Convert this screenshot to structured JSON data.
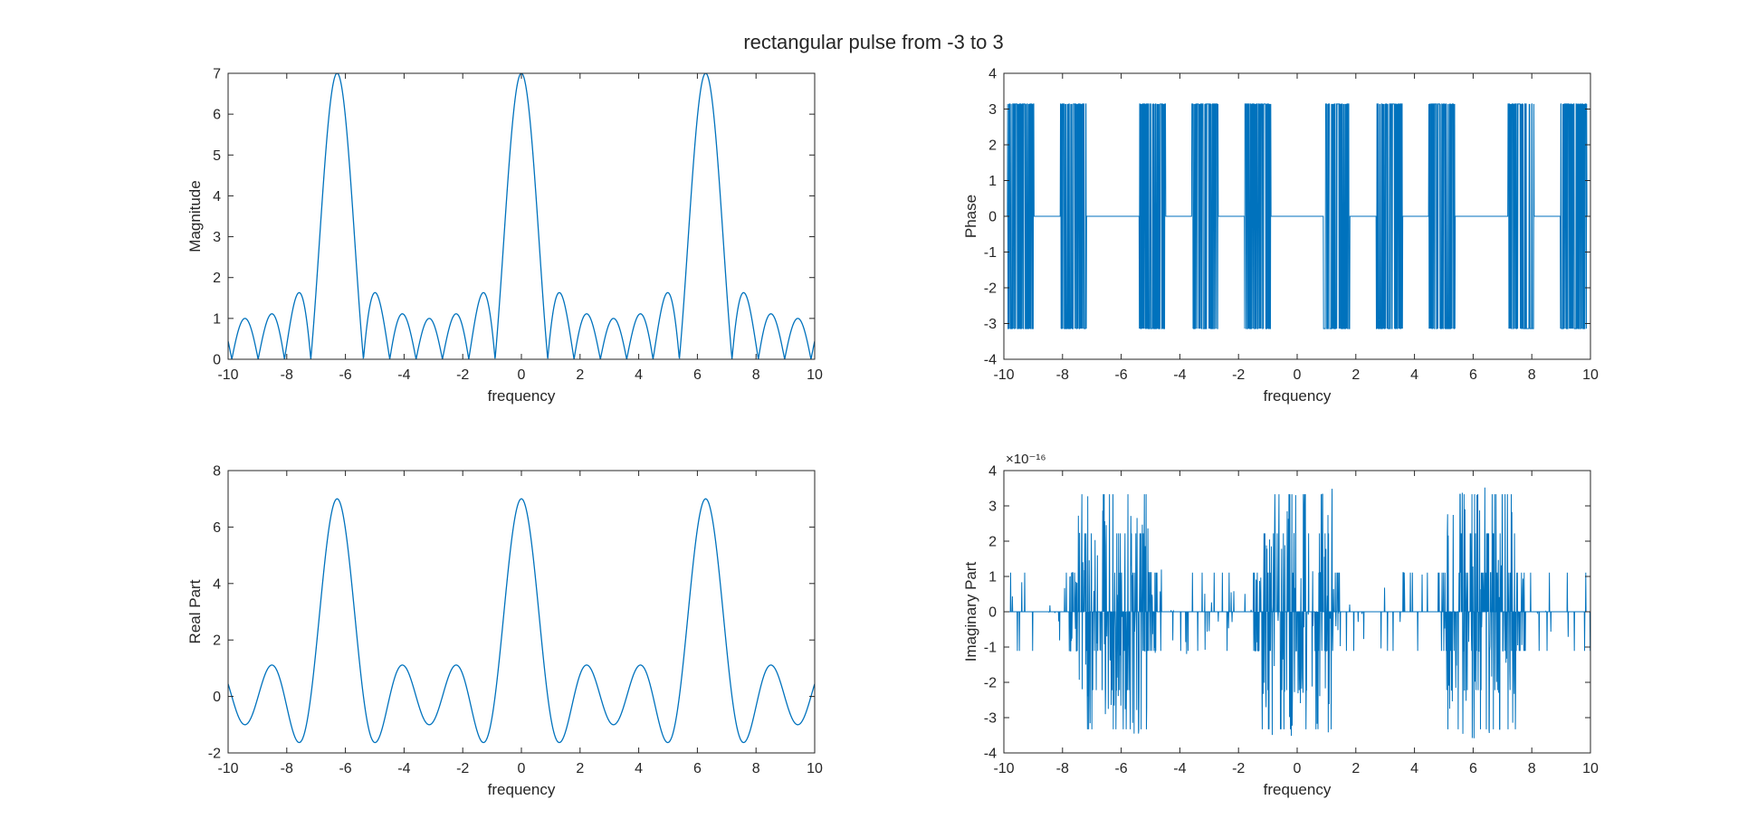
{
  "figure": {
    "title": "rectangular pulse from -3 to 3",
    "line_color": "#0072BD",
    "axis_color": "#262626"
  },
  "chart_data": [
    {
      "type": "line",
      "id": "magnitude",
      "title": "",
      "xlabel": "frequency",
      "ylabel": "Magnitude",
      "xlim": [
        -10,
        10
      ],
      "ylim": [
        0,
        7
      ],
      "xticks": [
        -10,
        -8,
        -6,
        -4,
        -2,
        0,
        2,
        4,
        6,
        8,
        10
      ],
      "yticks": [
        0,
        1,
        2,
        3,
        4,
        5,
        6,
        7
      ],
      "exponent_label": "",
      "grid": false,
      "series": [
        {
          "function": "abs of 7-sample Dirichlet kernel: |sin(3.5w)/sin(0.5w)|, sampled every 0.01 from -10 to 10",
          "x": [
            -10,
            -9.7,
            -9.35,
            -8.98,
            -8.6,
            -8.2,
            -7.7,
            -7.18,
            -6.8,
            -6.283,
            -5.75,
            -5.39,
            -5.0,
            -4.49,
            -4.13,
            -3.59,
            -3.14,
            -2.69,
            -2.2,
            -1.8,
            -1.35,
            -0.898,
            -0.45,
            0,
            0.45,
            0.898,
            1.35,
            1.8,
            2.2,
            2.69,
            3.14,
            3.59,
            4.13,
            4.49,
            5.0,
            5.39,
            5.75,
            6.283,
            6.8,
            7.18,
            7.7,
            8.2,
            8.6,
            8.98,
            9.35,
            9.7,
            10
          ],
          "y": [
            0.3,
            0.96,
            0.0,
            1.1,
            0.0,
            1.6,
            0.0,
            0.0,
            4.5,
            7.0,
            4.5,
            0.0,
            1.6,
            0.0,
            1.1,
            0.0,
            1.0,
            0.0,
            1.1,
            0.0,
            1.6,
            0.0,
            4.5,
            7.0,
            4.5,
            0.0,
            1.6,
            0.0,
            1.1,
            0.0,
            1.0,
            0.0,
            1.1,
            0.0,
            1.6,
            0.0,
            4.5,
            7.0,
            4.5,
            0.0,
            1.6,
            0.0,
            1.1,
            0.0,
            0.96,
            0.0,
            0.3
          ]
        }
      ]
    },
    {
      "type": "line",
      "id": "phase",
      "title": "",
      "xlabel": "frequency",
      "ylabel": "Phase",
      "xlim": [
        -10,
        10
      ],
      "ylim": [
        -4,
        4
      ],
      "xticks": [
        -10,
        -8,
        -6,
        -4,
        -2,
        0,
        2,
        4,
        6,
        8,
        10
      ],
      "yticks": [
        -4,
        -3,
        -2,
        -1,
        0,
        1,
        2,
        3,
        4
      ],
      "exponent_label": "",
      "grid": false,
      "series": [
        {
          "function": "angle of the real-valued transform: 0 where positive, +/-3.1416 (rapidly toggling from round-off) where negative",
          "x": [
            -10,
            -9.6,
            -9.4,
            -9.2,
            -9.0,
            -8.1,
            -8.0,
            -7.2,
            -5.4,
            -4.5,
            -3.6,
            -2.7,
            -1.8,
            -0.9,
            0,
            0.9,
            1.8,
            2.7,
            3.6,
            4.5,
            5.4,
            6.3,
            7.2,
            8.1,
            9.0,
            10
          ],
          "y": [
            3.14,
            3.14,
            -3.14,
            3.14,
            0,
            0,
            3.14,
            -3.14,
            0,
            3.14,
            0,
            3.14,
            -3.14,
            0,
            0,
            -3.14,
            0,
            3.14,
            0,
            3.14,
            -3.14,
            0,
            -3.14,
            3.14,
            0,
            3.14
          ]
        }
      ]
    },
    {
      "type": "line",
      "id": "real-part",
      "title": "",
      "xlabel": "frequency",
      "ylabel": "Real Part",
      "xlim": [
        -10,
        10
      ],
      "ylim": [
        -2,
        8
      ],
      "xticks": [
        -10,
        -8,
        -6,
        -4,
        -2,
        0,
        2,
        4,
        6,
        8,
        10
      ],
      "yticks": [
        -2,
        0,
        2,
        4,
        6,
        8
      ],
      "exponent_label": "",
      "grid": false,
      "series": [
        {
          "function": "7-sample Dirichlet kernel: sin(3.5w)/sin(0.5w), sampled every 0.01 from -10 to 10",
          "x": [
            -10,
            -9.7,
            -9.35,
            -8.98,
            -8.6,
            -8.2,
            -7.7,
            -7.18,
            -6.8,
            -6.283,
            -5.75,
            -5.39,
            -5.0,
            -4.49,
            -4.13,
            -3.59,
            -3.14,
            -2.69,
            -2.2,
            -1.8,
            -1.35,
            -0.898,
            -0.45,
            0,
            0.45,
            0.898,
            1.35,
            1.8,
            2.2,
            2.69,
            3.14,
            3.59,
            4.13,
            4.49,
            5.0,
            5.39,
            5.75,
            6.283,
            6.8,
            7.18,
            7.7,
            8.2,
            8.6,
            8.98,
            9.35,
            9.7,
            10
          ],
          "y": [
            0.3,
            -0.96,
            0.0,
            1.1,
            0.0,
            -1.6,
            0.0,
            0.0,
            4.5,
            7.0,
            4.5,
            0.0,
            -1.6,
            0.0,
            1.1,
            0.0,
            -1.0,
            0.0,
            1.1,
            0.0,
            -1.6,
            0.0,
            4.5,
            7.0,
            4.5,
            0.0,
            -1.6,
            0.0,
            1.1,
            0.0,
            -1.0,
            0.0,
            1.1,
            0.0,
            -1.6,
            0.0,
            4.5,
            7.0,
            4.5,
            0.0,
            -1.6,
            0.0,
            1.1,
            0.0,
            -0.96,
            0.0,
            0.3
          ]
        }
      ]
    },
    {
      "type": "line",
      "id": "imaginary-part",
      "title": "",
      "xlabel": "frequency",
      "ylabel": "Imaginary Part",
      "xlim": [
        -10,
        10
      ],
      "ylim": [
        -4,
        4
      ],
      "xticks": [
        -10,
        -8,
        -6,
        -4,
        -2,
        0,
        2,
        4,
        6,
        8,
        10
      ],
      "yticks": [
        -4,
        -3,
        -2,
        -1,
        0,
        1,
        2,
        3,
        4
      ],
      "exponent_label": "×10⁻¹⁶",
      "y_scale_factor": 1e-16,
      "grid": false,
      "series": [
        {
          "function": "floating-point round-off noise, magnitude up to about 3.33e-16, clustered near the main lobes at 0 and ±6.28",
          "x": [
            -10,
            -9.0,
            -8.0,
            -7.3,
            -7.0,
            -6.6,
            -6.3,
            -5.9,
            -5.6,
            -5.2,
            -4.6,
            -3.5,
            -1.2,
            -0.9,
            -0.6,
            -0.3,
            0,
            0.3,
            0.6,
            0.9,
            1.2,
            3.5,
            4.6,
            5.2,
            5.5,
            5.8,
            6.1,
            6.5,
            6.9,
            7.3,
            8.5,
            10
          ],
          "y": [
            1.1,
            1.1,
            -1.1,
            2.7,
            -3.33,
            3.33,
            -2.2,
            2.2,
            -3.33,
            1.1,
            -1.1,
            1.1,
            2.7,
            3.33,
            -2.8,
            2.2,
            -3.33,
            2.2,
            -2.8,
            3.33,
            2.7,
            -1.1,
            1.1,
            -2.2,
            3.33,
            -2.2,
            3.33,
            -2.2,
            3.33,
            -2.2,
            1.1,
            -1.1
          ]
        }
      ]
    }
  ]
}
